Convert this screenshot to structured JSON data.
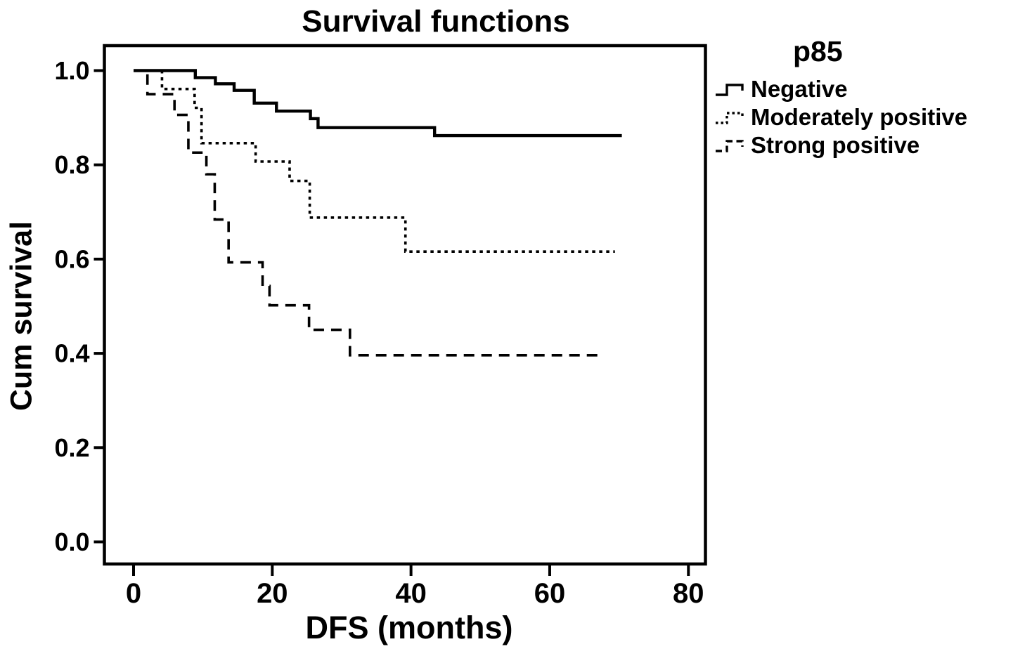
{
  "title": "Survival functions",
  "axes": {
    "x_label": "DFS (months)",
    "y_label": "Cum survival",
    "x_ticks": [
      "0",
      "20",
      "40",
      "60",
      "80"
    ],
    "y_ticks": [
      "0.0",
      "0.2",
      "0.4",
      "0.6",
      "0.8",
      "1.0"
    ]
  },
  "legend": {
    "title": "p85",
    "entries": [
      {
        "label": "Negative",
        "style": "solid"
      },
      {
        "label": "Moderately positive",
        "style": "dotted"
      },
      {
        "label": "Strong positive",
        "style": "dashed"
      }
    ]
  },
  "colors": {
    "line": "#000000",
    "background": "#ffffff"
  },
  "chart_data": {
    "type": "line",
    "subtype": "kaplan-meier-step",
    "title": "Survival functions",
    "xlabel": "DFS (months)",
    "ylabel": "Cum survival",
    "xlim": [
      -4.3,
      82.3
    ],
    "ylim": [
      -0.05,
      1.05
    ],
    "x_ticks": [
      0,
      20,
      40,
      60,
      80
    ],
    "y_ticks": [
      0.0,
      0.2,
      0.4,
      0.6,
      0.8,
      1.0
    ],
    "grid": false,
    "legend_position": "outside-upper-right",
    "series": [
      {
        "name": "Negative",
        "line_style": "solid",
        "steps": [
          [
            0,
            1.0
          ],
          [
            8.9,
            0.985
          ],
          [
            11.8,
            0.972
          ],
          [
            14.5,
            0.958
          ],
          [
            17.4,
            0.931
          ],
          [
            20.6,
            0.914
          ],
          [
            25.5,
            0.898
          ],
          [
            26.6,
            0.879
          ],
          [
            43.4,
            0.862
          ]
        ],
        "end_x": 70.4
      },
      {
        "name": "Moderately positive",
        "line_style": "dotted",
        "steps": [
          [
            0,
            1.0
          ],
          [
            4.1,
            0.961
          ],
          [
            8.8,
            0.921
          ],
          [
            9.8,
            0.846
          ],
          [
            17.6,
            0.807
          ],
          [
            22.5,
            0.766
          ],
          [
            25.4,
            0.688
          ],
          [
            39.2,
            0.616
          ]
        ],
        "end_x": 69.4
      },
      {
        "name": "Strong positive",
        "line_style": "dashed",
        "steps": [
          [
            0,
            1.0
          ],
          [
            2.0,
            0.95
          ],
          [
            5.9,
            0.906
          ],
          [
            7.9,
            0.826
          ],
          [
            10.5,
            0.78
          ],
          [
            11.7,
            0.684
          ],
          [
            13.7,
            0.593
          ],
          [
            18.6,
            0.543
          ],
          [
            19.6,
            0.502
          ],
          [
            25.3,
            0.45
          ],
          [
            31.2,
            0.396
          ]
        ],
        "end_x": 67.4
      }
    ]
  }
}
